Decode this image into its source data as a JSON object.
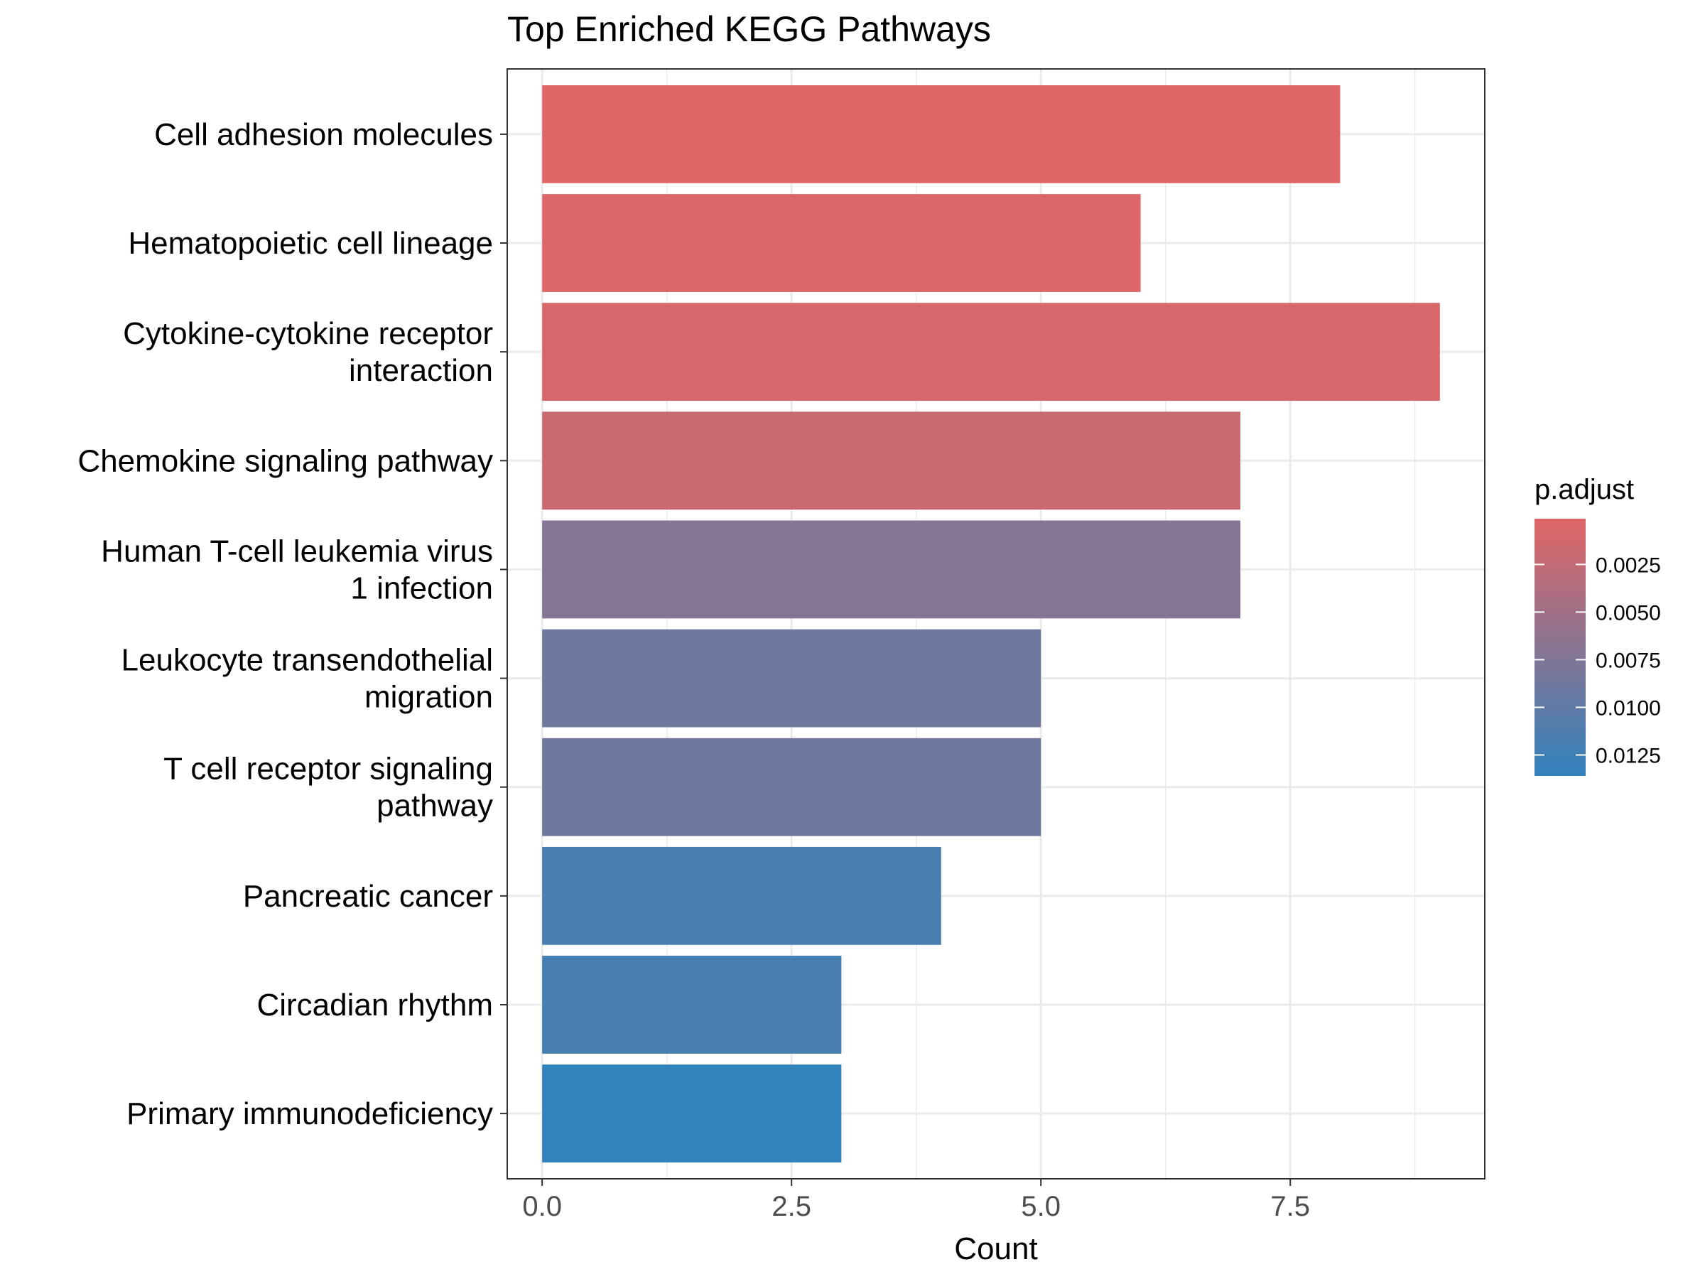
{
  "chart_data": {
    "type": "bar",
    "orientation": "horizontal",
    "title": "Top Enriched KEGG Pathways",
    "xlabel": "Count",
    "ylabel": "",
    "xlim": [
      -0.35,
      9.45
    ],
    "x_ticks": [
      0,
      2.5,
      5,
      7.5
    ],
    "x_tick_labels": [
      "0.0",
      "2.5",
      "5.0",
      "7.5"
    ],
    "grid": true,
    "categories": [
      [
        "Cell adhesion molecules"
      ],
      [
        "Hematopoietic cell lineage"
      ],
      [
        "Cytokine-cytokine receptor",
        "interaction"
      ],
      [
        "Chemokine signaling pathway"
      ],
      [
        "Human T-cell leukemia virus",
        "1 infection"
      ],
      [
        "Leukocyte transendothelial",
        "migration"
      ],
      [
        "T cell receptor signaling",
        "pathway"
      ],
      [
        "Pancreatic cancer"
      ],
      [
        "Circadian rhythm"
      ],
      [
        "Primary immunodeficiency"
      ]
    ],
    "values": [
      8,
      6,
      9,
      7,
      7,
      5,
      5,
      4,
      3,
      3
    ],
    "p_adjust": [
      0.0002,
      0.0004,
      0.0008,
      0.0019,
      0.0072,
      0.0087,
      0.0087,
      0.0118,
      0.0119,
      0.0135
    ],
    "legend": {
      "title": "p.adjust",
      "position": "right",
      "ticks": [
        0.0025,
        0.005,
        0.0075,
        0.01,
        0.0125
      ],
      "tick_labels": [
        "0.0025",
        "0.0050",
        "0.0075",
        "0.0100",
        "0.0125"
      ],
      "range": [
        0.0001,
        0.0136
      ],
      "color_low": "#E06666",
      "color_high": "#3182BD"
    },
    "colors": {
      "panel_border": "#333333",
      "grid": "#EBEBEB",
      "tick": "#333333"
    }
  }
}
